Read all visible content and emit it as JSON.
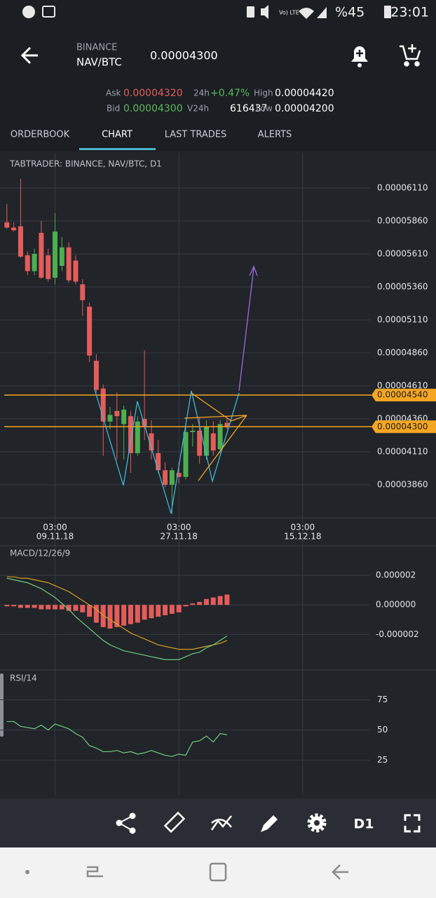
{
  "status_bar": {
    "battery": "%45",
    "time": "23:01"
  },
  "header": {
    "exchange": "BINANCE",
    "pair": "NAV/BTC",
    "price": "0.00004300"
  },
  "stats": {
    "ask": {
      "label": "Ask",
      "value": "0.00004320"
    },
    "bid": {
      "label": "Bid",
      "value": "0.00004300"
    },
    "change": {
      "label": "24h",
      "value": "+0.47%"
    },
    "volume": {
      "label": "V24h",
      "value": "616437"
    },
    "high": {
      "label": "High",
      "value": "0.00004420"
    },
    "low": {
      "label": "Low",
      "value": "0.00004200"
    }
  },
  "tabs": {
    "items": [
      "ORDERBOOK",
      "CHART",
      "LAST TRADES",
      "ALERTS"
    ],
    "active": 1
  },
  "price_chart": {
    "type": "candlestick",
    "title": "TABTRADER: BINANCE, NAV/BTC, D1",
    "up_color": "#4caf50",
    "down_color": "#e35d5b",
    "xlim": [
      -1,
      53
    ],
    "xticks": [
      {
        "value": 7,
        "time": "03:00",
        "date": "09.11.18"
      },
      {
        "value": 25,
        "time": "03:00",
        "date": "27.11.18"
      },
      {
        "value": 43,
        "time": "03:00",
        "date": "15.12.18"
      }
    ],
    "ylim": [
      3.61e-05,
      6.376e-05
    ],
    "yticks": [
      {
        "value": 6.11e-05,
        "label": "0.00006110"
      },
      {
        "value": 5.86e-05,
        "label": "0.00005860"
      },
      {
        "value": 5.61e-05,
        "label": "0.00005610"
      },
      {
        "value": 5.36e-05,
        "label": "0.00005360"
      },
      {
        "value": 5.11e-05,
        "label": "0.00005110"
      },
      {
        "value": 4.86e-05,
        "label": "0.00004860"
      },
      {
        "value": 4.61e-05,
        "label": "0.00004610"
      },
      {
        "value": 4.36e-05,
        "label": "0.00004360"
      },
      {
        "value": 4.11e-05,
        "label": "0.00004110"
      },
      {
        "value": 3.86e-05,
        "label": "0.00003860"
      }
    ],
    "levels": [
      {
        "value": 4.54e-05,
        "label": "0.00004540",
        "color": "#f5a623"
      },
      {
        "value": 4.3e-05,
        "label": "0.00004300",
        "color": "#f5a623"
      }
    ],
    "open": [
      5.85e-05,
      5.81e-05,
      5.82e-05,
      5.6e-05,
      5.48e-05,
      5.77e-05,
      5.6e-05,
      5.43e-05,
      5.52e-05,
      5.66e-05,
      5.56e-05,
      5.38e-05,
      5.21e-05,
      4.8e-05,
      4.59e-05,
      4.34e-05,
      4.42e-05,
      4.32e-05,
      4.38e-05,
      4.1e-05,
      4.36e-05,
      4.25e-05,
      4.1e-05,
      3.97e-05,
      3.86e-05,
      3.95e-05,
      3.92e-05,
      4.26e-05,
      4.27e-05,
      4.08e-05,
      4.25e-05,
      4.13e-05,
      4.33e-05
    ],
    "high": [
      5.99e-05,
      5.85e-05,
      6.18e-05,
      5.63e-05,
      5.65e-05,
      5.86e-05,
      5.65e-05,
      5.92e-05,
      5.74e-05,
      5.7e-05,
      5.6e-05,
      5.42e-05,
      5.24e-05,
      4.85e-05,
      4.62e-05,
      4.45e-05,
      4.56e-05,
      4.46e-05,
      4.42e-05,
      4.38e-05,
      4.88e-05,
      4.35e-05,
      4.2e-05,
      4.03e-05,
      3.99e-05,
      4.03e-05,
      4.3e-05,
      4.32e-05,
      4.37e-05,
      4.35e-05,
      4.34e-05,
      4.35e-05,
      4.36e-05
    ],
    "low": [
      5.8e-05,
      5.78e-05,
      5.58e-05,
      5.45e-05,
      5.45e-05,
      5.42e-05,
      5.4e-05,
      5.38e-05,
      5.48e-05,
      5.39e-05,
      5.38e-05,
      5.14e-05,
      4.79e-05,
      4.56e-05,
      4.08e-05,
      4.28e-05,
      4.05e-05,
      4.05e-05,
      3.95e-05,
      4.08e-05,
      4.2e-05,
      4.05e-05,
      3.95e-05,
      3.84e-05,
      3.64e-05,
      3.87e-05,
      3.9e-05,
      4.15e-05,
      4.02e-05,
      4.05e-05,
      4.08e-05,
      4.1e-05,
      4.28e-05
    ],
    "close": [
      5.81e-05,
      5.79e-05,
      5.59e-05,
      5.48e-05,
      5.61e-05,
      5.43e-05,
      5.42e-05,
      5.78e-05,
      5.66e-05,
      5.41e-05,
      5.4e-05,
      5.26e-05,
      4.84e-05,
      4.58e-05,
      4.34e-05,
      4.39e-05,
      4.38e-05,
      4.43e-05,
      4.1e-05,
      4.34e-05,
      4.3e-05,
      4.12e-05,
      3.97e-05,
      3.86e-05,
      3.97e-05,
      3.92e-05,
      4.26e-05,
      4.27e-05,
      4.08e-05,
      4.3e-05,
      4.12e-05,
      4.32e-05,
      4.3e-05
    ]
  },
  "macd": {
    "type": "macd",
    "title": "MACD/12/26/9",
    "ylim": [
      -4.4e-06,
      3.9e-06
    ],
    "yticks": [
      {
        "value": 2e-06,
        "label": "0.000002"
      },
      {
        "value": 0,
        "label": "0.000000"
      },
      {
        "value": -2e-06,
        "label": "-0.000002"
      }
    ],
    "histogram": {
      "color": "#e35d5b",
      "values": [
        -1e-07,
        -1e-07,
        -2e-07,
        -2e-07,
        -2e-07,
        -3e-07,
        -3e-07,
        -3e-07,
        -3e-07,
        -4e-07,
        -4e-07,
        -5e-07,
        -8e-07,
        -1.2e-06,
        -1.5e-06,
        -1.6e-06,
        -1.5e-06,
        -1.4e-06,
        -1.3e-06,
        -1.2e-06,
        -1e-06,
        -9e-07,
        -8e-07,
        -7e-07,
        -6e-07,
        -5e-07,
        -1e-07,
        1e-07,
        2e-07,
        4e-07,
        5e-07,
        6e-07,
        7e-07
      ]
    },
    "macd_line": {
      "color": "#6fcf7f",
      "values": [
        1.8e-06,
        1.7e-06,
        1.6e-06,
        1.5e-06,
        1.3e-06,
        1.1e-06,
        8e-07,
        5e-07,
        1e-07,
        -3e-07,
        -8e-07,
        -1.2e-06,
        -1.6e-06,
        -2e-06,
        -2.4e-06,
        -2.7e-06,
        -2.9e-06,
        -3.1e-06,
        -3.2e-06,
        -3.3e-06,
        -3.4e-06,
        -3.5e-06,
        -3.6e-06,
        -3.7e-06,
        -3.7e-06,
        -3.7e-06,
        -3.5e-06,
        -3.3e-06,
        -3.2e-06,
        -2.9e-06,
        -2.7e-06,
        -2.4e-06,
        -2.1e-06
      ]
    },
    "signal_line": {
      "color": "#d4a020",
      "values": [
        1.9e-06,
        1.9e-06,
        1.8e-06,
        1.8e-06,
        1.7e-06,
        1.6e-06,
        1.5e-06,
        1.3e-06,
        1.1e-06,
        9e-07,
        6e-07,
        3e-07,
        0,
        -3e-07,
        -7e-07,
        -1e-06,
        -1.3e-06,
        -1.6e-06,
        -1.9e-06,
        -2.1e-06,
        -2.3e-06,
        -2.5e-06,
        -2.7e-06,
        -2.8e-06,
        -2.9e-06,
        -3e-06,
        -3e-06,
        -3e-06,
        -2.9e-06,
        -2.8e-06,
        -2.7e-06,
        -2.6e-06,
        -2.4e-06
      ]
    }
  },
  "rsi": {
    "type": "line",
    "title": "RSI/14",
    "color": "#6fcf7f",
    "ylim": [
      -5,
      98
    ],
    "yticks": [
      75,
      50,
      25
    ],
    "values": [
      57,
      57,
      53,
      52,
      51,
      54,
      50,
      55,
      53,
      51,
      47,
      44,
      37,
      35,
      32,
      32,
      33,
      31,
      32,
      30,
      31,
      33,
      31,
      29,
      28,
      30,
      29,
      40,
      41,
      45,
      40,
      47,
      46
    ]
  },
  "toolbar": {
    "timeframe": "D1"
  }
}
